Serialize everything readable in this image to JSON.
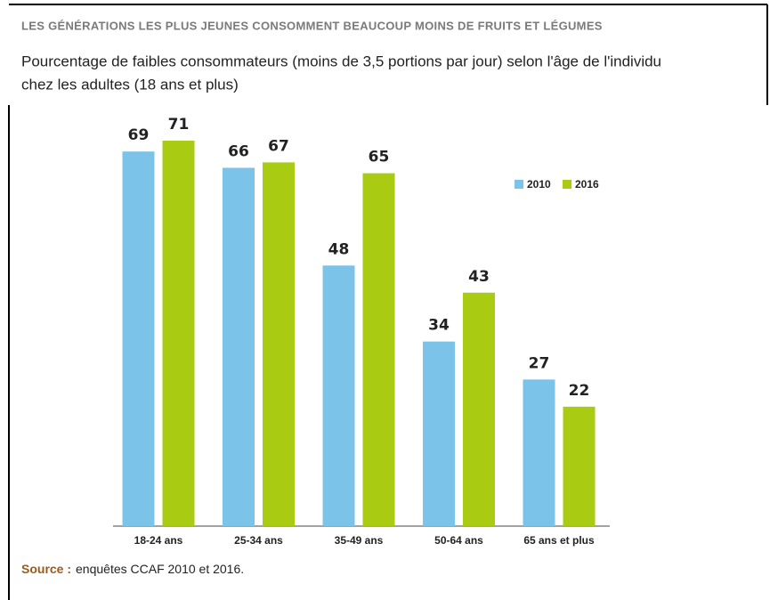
{
  "chart_data": {
    "type": "bar",
    "title": "LES GÉNÉRATIONS LES PLUS JEUNES CONSOMMENT BEAUCOUP MOINS DE FRUITS ET LÉGUMES",
    "subtitle": [
      "Pourcentage de faibles consommateurs (moins de 3,5 portions par jour) selon l'âge de l'individu",
      "chez les adultes (18 ans et plus)"
    ],
    "categories": [
      "18-24 ans",
      "25-34 ans",
      "35-49 ans",
      "50-64 ans",
      "65 ans et plus"
    ],
    "series": [
      {
        "name": "2010",
        "color": "#7cc3ea",
        "values": [
          69,
          66,
          48,
          34,
          27
        ]
      },
      {
        "name": "2016",
        "color": "#a9cb12",
        "values": [
          71,
          67,
          65,
          43,
          22
        ]
      }
    ],
    "legend": "top-right",
    "source_label": "Source :",
    "source": "enquêtes CCAF 2010 et 2016."
  }
}
